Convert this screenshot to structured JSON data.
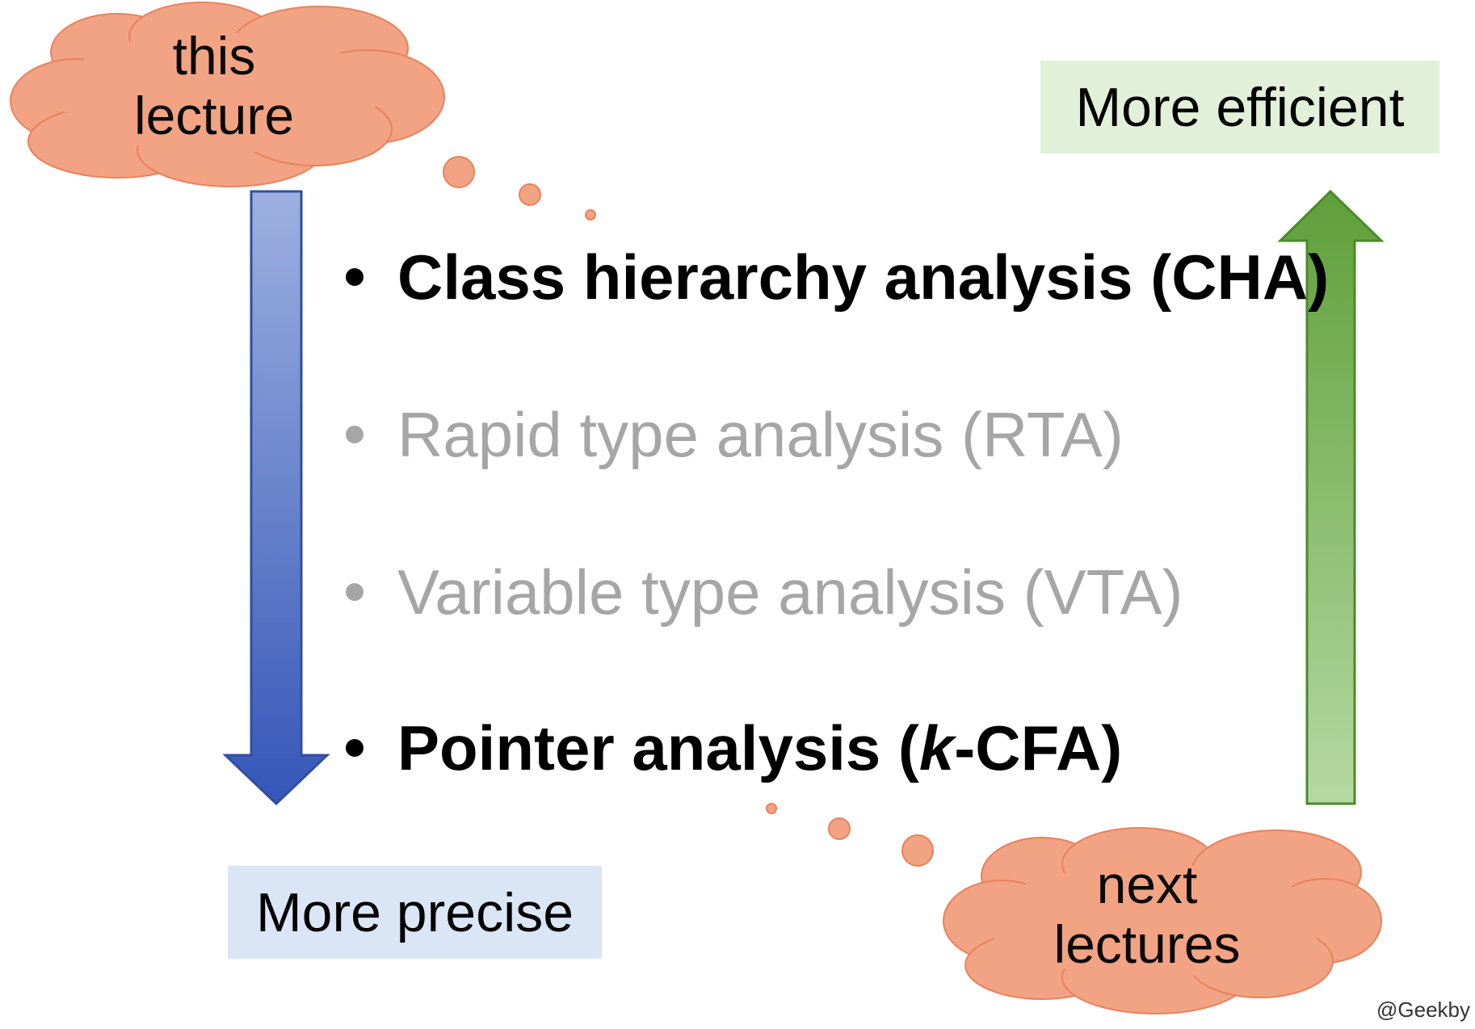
{
  "clouds": {
    "top_left": {
      "line1": "this",
      "line2": "lecture"
    },
    "bottom_right": {
      "line1": "next",
      "line2": "lectures"
    }
  },
  "labels": {
    "more_efficient": "More efficient",
    "more_precise": "More precise"
  },
  "bullets": [
    {
      "prefix": "Class hierarchy analysis (CHA)",
      "italic": "",
      "suffix": "",
      "emphasis": "active"
    },
    {
      "prefix": "Rapid type analysis (RTA)",
      "italic": "",
      "suffix": "",
      "emphasis": "dim"
    },
    {
      "prefix": "Variable type analysis (VTA)",
      "italic": "",
      "suffix": "",
      "emphasis": "dim"
    },
    {
      "prefix": "Pointer analysis (",
      "italic": "k",
      "suffix": "-CFA)",
      "emphasis": "active"
    }
  ],
  "watermark": "@Geekby",
  "colors": {
    "cloud_fill": "#f2a384",
    "cloud_stroke": "#e8825c",
    "down_arrow_top": "#9db0e0",
    "down_arrow_bottom": "#3556b8",
    "up_arrow_top": "#5f9f3a",
    "up_arrow_bottom": "#b5d9a2",
    "precise_box": "#dae6f5",
    "efficient_box": "#e2f0d9"
  }
}
